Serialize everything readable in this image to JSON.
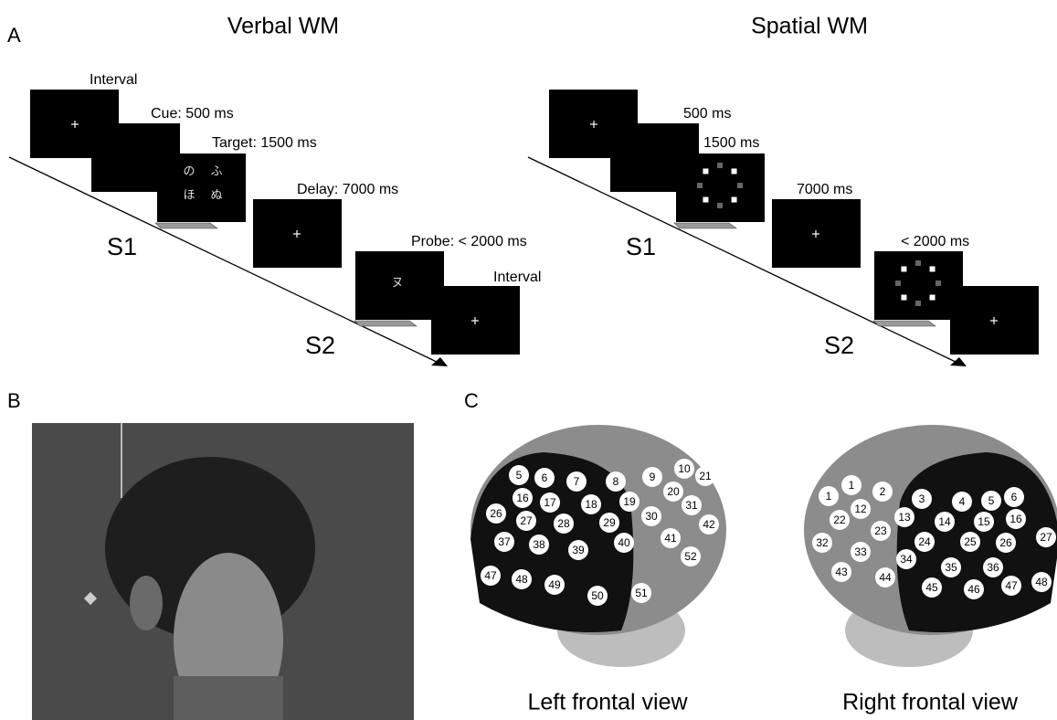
{
  "labels": {
    "a": "A",
    "b": "B",
    "c": "C"
  },
  "verbal": {
    "title": "Verbal WM",
    "steps": [
      "Interval",
      "Cue: 500 ms",
      "Target: 1500 ms",
      "Delay: 7000 ms",
      "Probe: < 2000 ms",
      "Interval"
    ],
    "s1": "S1",
    "s2": "S2",
    "target_chars": [
      "の",
      "ふ",
      "ほ",
      "ぬ"
    ],
    "probe_char": "ヌ"
  },
  "spatial": {
    "title": "Spatial WM",
    "steps": [
      "500 ms",
      "1500 ms",
      "7000 ms",
      "< 2000 ms"
    ],
    "s1": "S1",
    "s2": "S2"
  },
  "views": [
    {
      "caption": "Left frontal view",
      "channels": [
        "5",
        "6",
        "7",
        "8",
        "9",
        "10",
        "21",
        "16",
        "17",
        "18",
        "19",
        "20",
        "31",
        "26",
        "27",
        "28",
        "29",
        "30",
        "42",
        "37",
        "38",
        "39",
        "40",
        "41",
        "47",
        "48",
        "49",
        "50",
        "51",
        "52"
      ]
    },
    {
      "caption": "Right frontal view",
      "channels": [
        "1",
        "1",
        "2",
        "12",
        "22",
        "13",
        "3",
        "4",
        "5",
        "6",
        "14",
        "15",
        "16",
        "27",
        "23",
        "24",
        "25",
        "26",
        "32",
        "33",
        "34",
        "35",
        "36",
        "43",
        "44",
        "45",
        "46",
        "47",
        "48"
      ]
    }
  ]
}
